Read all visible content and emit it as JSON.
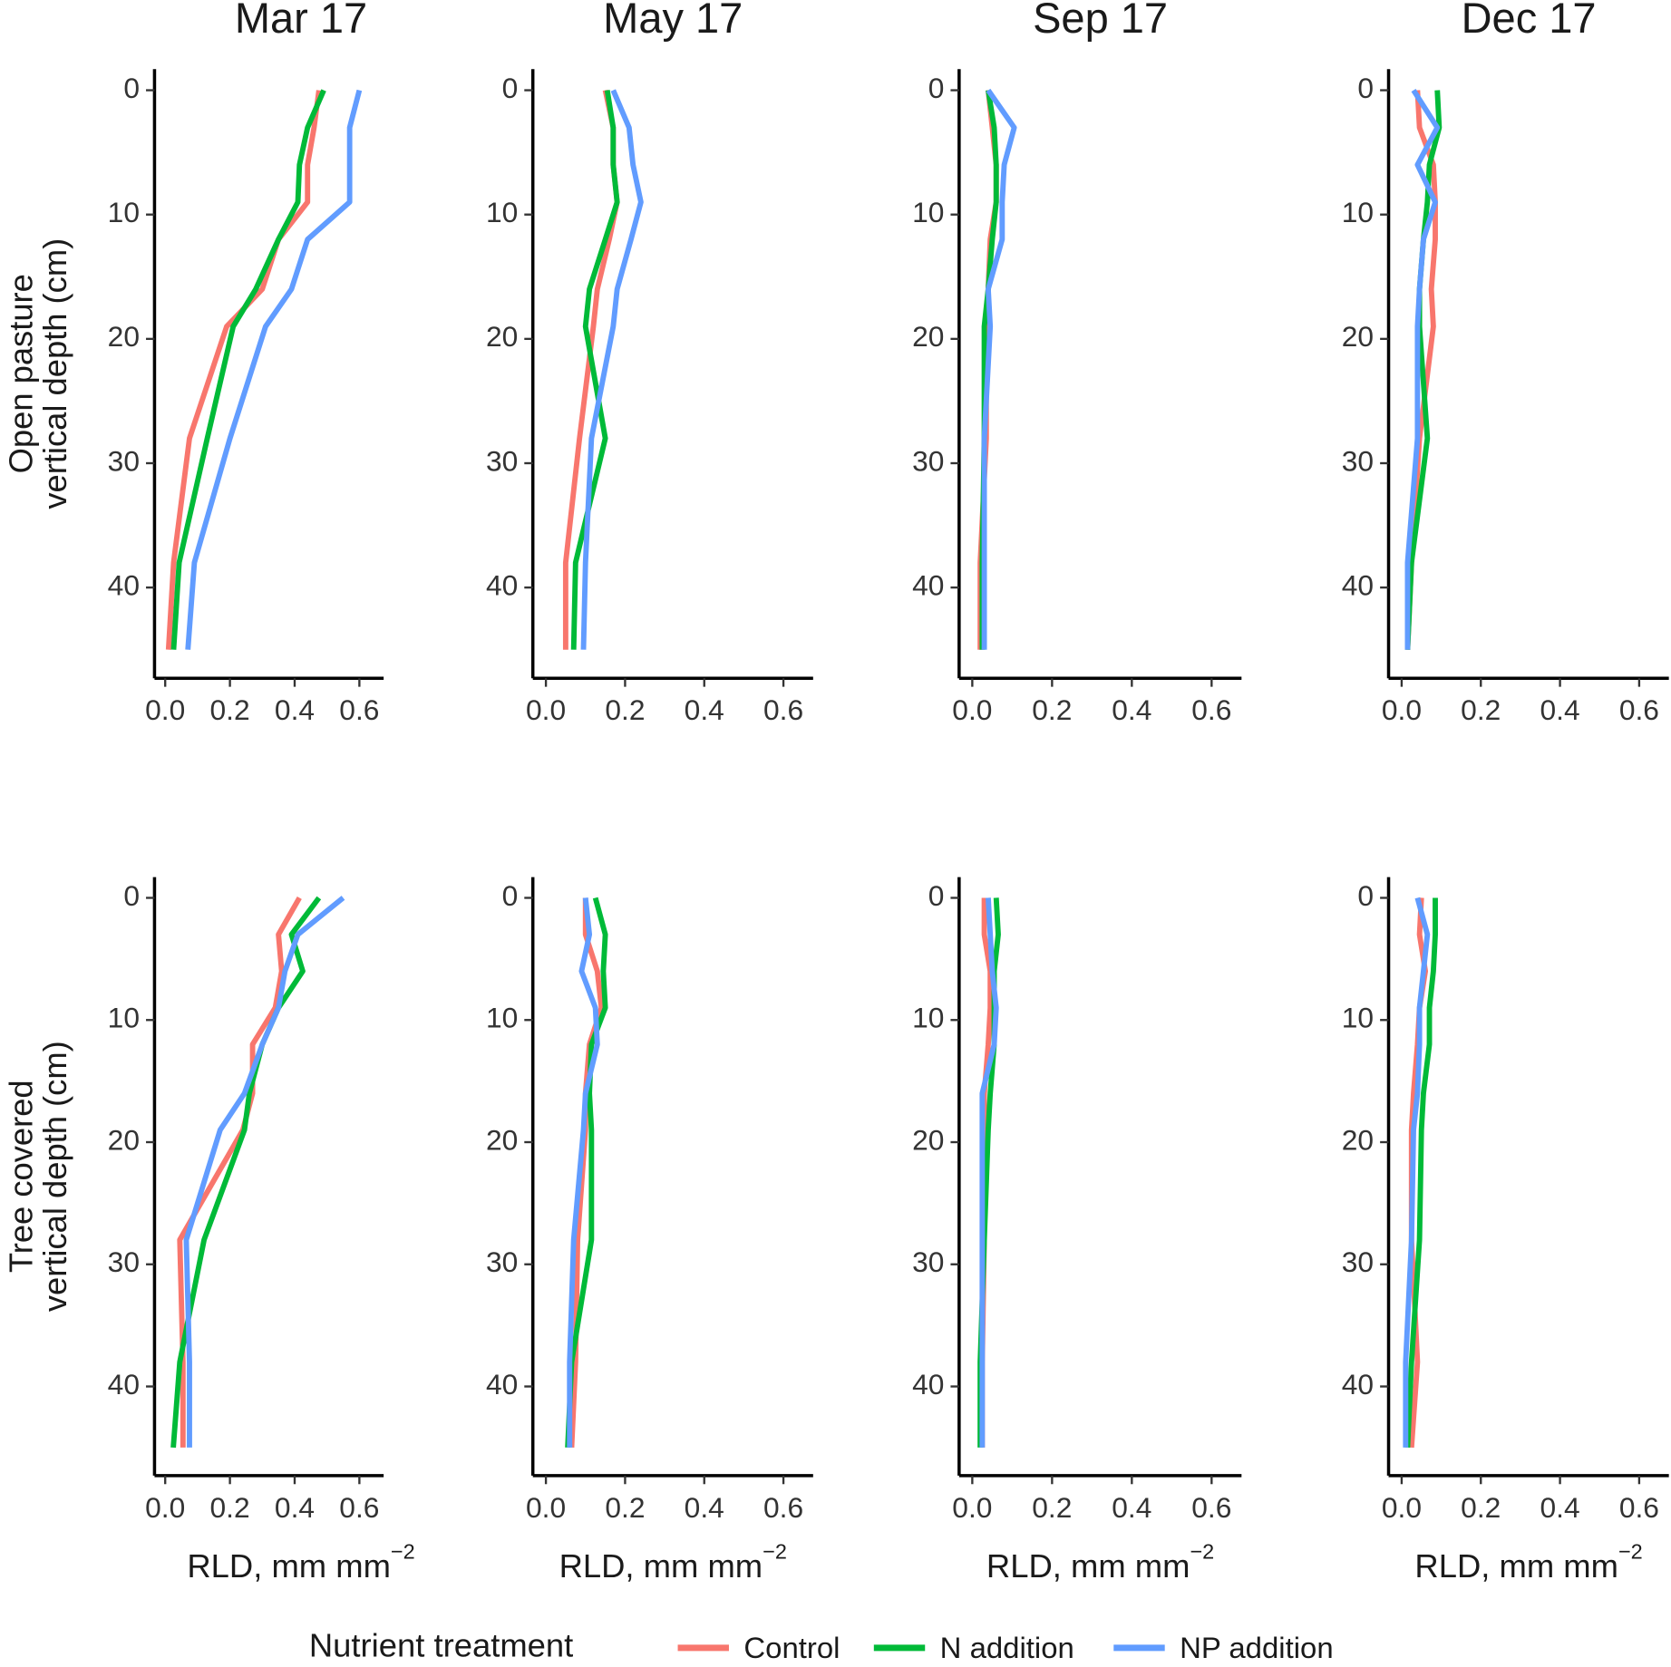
{
  "legend": {
    "title": "Nutrient treatment",
    "series": [
      {
        "name": "Control",
        "color": "#F8766D"
      },
      {
        "name": "N addition",
        "color": "#00BA38"
      },
      {
        "name": "NP addition",
        "color": "#619CFF"
      }
    ]
  },
  "chart_data": [
    {
      "type": "line",
      "title": "Mar 17",
      "ylabel": [
        "Open pasture",
        "vertical depth (cm)"
      ],
      "y": [
        0,
        3,
        6,
        9,
        12,
        16,
        19,
        28,
        38,
        45
      ],
      "xlim": [
        -0.033,
        0.675
      ],
      "ylim": [
        -1.7,
        47.3
      ],
      "y_reversed": true,
      "xticks": [
        {
          "value": 0,
          "label": "0.0"
        },
        0.2,
        0.4,
        0.6
      ],
      "yticks": [
        0,
        10,
        20,
        30,
        40
      ],
      "series": [
        {
          "values": [
            0.475,
            0.46,
            0.44,
            0.44,
            0.35,
            0.3,
            0.19,
            0.075,
            0.026,
            0.01
          ]
        },
        {
          "values": [
            0.49,
            0.44,
            0.415,
            0.41,
            0.35,
            0.28,
            0.21,
            0.13,
            0.043,
            0.026
          ]
        },
        {
          "values": [
            0.6,
            0.57,
            0.57,
            0.57,
            0.44,
            0.39,
            0.31,
            0.2,
            0.09,
            0.07
          ]
        }
      ]
    },
    {
      "type": "line",
      "title": "May 17",
      "y": [
        0,
        3,
        6,
        9,
        12,
        16,
        19,
        28,
        38,
        45
      ],
      "xlim": [
        -0.033,
        0.675
      ],
      "ylim": [
        -1.7,
        47.3
      ],
      "y_reversed": true,
      "xticks": [
        {
          "value": 0,
          "label": "0.0"
        },
        0.2,
        0.4,
        0.6
      ],
      "yticks": [
        0,
        10,
        20,
        30,
        40
      ],
      "series": [
        {
          "values": [
            0.15,
            0.17,
            0.17,
            0.18,
            0.16,
            0.13,
            0.12,
            0.085,
            0.05,
            0.05
          ]
        },
        {
          "values": [
            0.155,
            0.17,
            0.17,
            0.18,
            0.15,
            0.11,
            0.1,
            0.15,
            0.075,
            0.07
          ]
        },
        {
          "values": [
            0.17,
            0.21,
            0.22,
            0.24,
            0.215,
            0.18,
            0.17,
            0.115,
            0.1,
            0.095
          ]
        }
      ]
    },
    {
      "type": "line",
      "title": "Sep 17",
      "y": [
        0,
        3,
        6,
        9,
        12,
        16,
        19,
        28,
        38,
        45
      ],
      "xlim": [
        -0.033,
        0.675
      ],
      "ylim": [
        -1.7,
        47.3
      ],
      "y_reversed": true,
      "xticks": [
        {
          "value": 0,
          "label": "0.0"
        },
        0.2,
        0.4,
        0.6
      ],
      "yticks": [
        0,
        10,
        20,
        30,
        40
      ],
      "series": [
        {
          "values": [
            0.04,
            0.05,
            0.06,
            0.06,
            0.045,
            0.04,
            0.035,
            0.035,
            0.02,
            0.02
          ]
        },
        {
          "values": [
            0.04,
            0.055,
            0.06,
            0.06,
            0.05,
            0.04,
            0.03,
            0.03,
            0.025,
            0.025
          ]
        },
        {
          "values": [
            0.04,
            0.105,
            0.08,
            0.075,
            0.075,
            0.04,
            0.045,
            0.03,
            0.03,
            0.03
          ]
        }
      ]
    },
    {
      "type": "line",
      "title": "Dec 17",
      "y": [
        0,
        3,
        6,
        9,
        12,
        16,
        19,
        28,
        38,
        45
      ],
      "xlim": [
        -0.033,
        0.675
      ],
      "ylim": [
        -1.7,
        47.3
      ],
      "y_reversed": true,
      "xticks": [
        {
          "value": 0,
          "label": "0.0"
        },
        0.2,
        0.4,
        0.6
      ],
      "yticks": [
        0,
        10,
        20,
        30,
        40
      ],
      "series": [
        {
          "values": [
            0.04,
            0.045,
            0.08,
            0.085,
            0.085,
            0.075,
            0.08,
            0.045,
            0.025,
            0.015
          ]
        },
        {
          "values": [
            0.09,
            0.095,
            0.07,
            0.065,
            0.055,
            0.045,
            0.045,
            0.065,
            0.025,
            0.015
          ]
        },
        {
          "values": [
            0.03,
            0.09,
            0.04,
            0.085,
            0.055,
            0.045,
            0.04,
            0.04,
            0.015,
            0.015
          ]
        }
      ]
    },
    {
      "type": "line",
      "ylabel": [
        "Tree covered",
        "vertical depth (cm)"
      ],
      "xlabel": "RLD, mm mm",
      "xlabel_sup": "−2",
      "y": [
        0,
        3,
        6,
        9,
        12,
        16,
        19,
        28,
        38,
        45
      ],
      "xlim": [
        -0.033,
        0.675
      ],
      "ylim": [
        -1.7,
        47.3
      ],
      "y_reversed": true,
      "xticks": [
        {
          "value": 0,
          "label": "0.0"
        },
        0.2,
        0.4,
        0.6
      ],
      "yticks": [
        0,
        10,
        20,
        30,
        40
      ],
      "series": [
        {
          "values": [
            0.415,
            0.35,
            0.36,
            0.34,
            0.27,
            0.27,
            0.24,
            0.045,
            0.055,
            0.055
          ]
        },
        {
          "values": [
            0.475,
            0.39,
            0.425,
            0.35,
            0.3,
            0.26,
            0.245,
            0.12,
            0.045,
            0.025
          ]
        },
        {
          "values": [
            0.55,
            0.41,
            0.37,
            0.35,
            0.3,
            0.245,
            0.17,
            0.065,
            0.075,
            0.075
          ]
        }
      ]
    },
    {
      "type": "line",
      "xlabel": "RLD, mm mm",
      "xlabel_sup": "−2",
      "y": [
        0,
        3,
        6,
        9,
        12,
        16,
        19,
        28,
        38,
        45
      ],
      "xlim": [
        -0.033,
        0.675
      ],
      "ylim": [
        -1.7,
        47.3
      ],
      "y_reversed": true,
      "xticks": [
        {
          "value": 0,
          "label": "0.0"
        },
        0.2,
        0.4,
        0.6
      ],
      "yticks": [
        0,
        10,
        20,
        30,
        40
      ],
      "series": [
        {
          "values": [
            0.1,
            0.1,
            0.13,
            0.14,
            0.11,
            0.1,
            0.1,
            0.08,
            0.075,
            0.065
          ]
        },
        {
          "values": [
            0.125,
            0.15,
            0.145,
            0.15,
            0.115,
            0.11,
            0.115,
            0.115,
            0.065,
            0.055
          ]
        },
        {
          "values": [
            0.1,
            0.11,
            0.09,
            0.125,
            0.13,
            0.1,
            0.095,
            0.07,
            0.06,
            0.06
          ]
        }
      ]
    },
    {
      "type": "line",
      "xlabel": "RLD, mm mm",
      "xlabel_sup": "−2",
      "y": [
        0,
        3,
        6,
        9,
        12,
        16,
        19,
        28,
        38,
        45
      ],
      "xlim": [
        -0.033,
        0.675
      ],
      "ylim": [
        -1.7,
        47.3
      ],
      "y_reversed": true,
      "xticks": [
        {
          "value": 0,
          "label": "0.0"
        },
        0.2,
        0.4,
        0.6
      ],
      "yticks": [
        0,
        10,
        20,
        30,
        40
      ],
      "series": [
        {
          "values": [
            0.03,
            0.03,
            0.045,
            0.045,
            0.04,
            0.03,
            0.03,
            0.03,
            0.025,
            0.025
          ]
        },
        {
          "values": [
            0.06,
            0.065,
            0.055,
            0.055,
            0.055,
            0.045,
            0.04,
            0.03,
            0.02,
            0.02
          ]
        },
        {
          "values": [
            0.04,
            0.045,
            0.05,
            0.06,
            0.055,
            0.025,
            0.025,
            0.025,
            0.025,
            0.025
          ]
        }
      ]
    },
    {
      "type": "line",
      "xlabel": "RLD, mm mm",
      "xlabel_sup": "−2",
      "y": [
        0,
        3,
        6,
        9,
        12,
        16,
        19,
        28,
        38,
        45
      ],
      "xlim": [
        -0.033,
        0.675
      ],
      "ylim": [
        -1.7,
        47.3
      ],
      "y_reversed": true,
      "xticks": [
        {
          "value": 0,
          "label": "0.0"
        },
        0.2,
        0.4,
        0.6
      ],
      "yticks": [
        0,
        10,
        20,
        30,
        40
      ],
      "series": [
        {
          "values": [
            0.05,
            0.045,
            0.06,
            0.045,
            0.04,
            0.03,
            0.025,
            0.025,
            0.04,
            0.025
          ]
        },
        {
          "values": [
            0.085,
            0.085,
            0.08,
            0.07,
            0.07,
            0.055,
            0.05,
            0.045,
            0.025,
            0.015
          ]
        },
        {
          "values": [
            0.04,
            0.065,
            0.055,
            0.045,
            0.045,
            0.04,
            0.03,
            0.025,
            0.01,
            0.01
          ]
        }
      ]
    }
  ]
}
